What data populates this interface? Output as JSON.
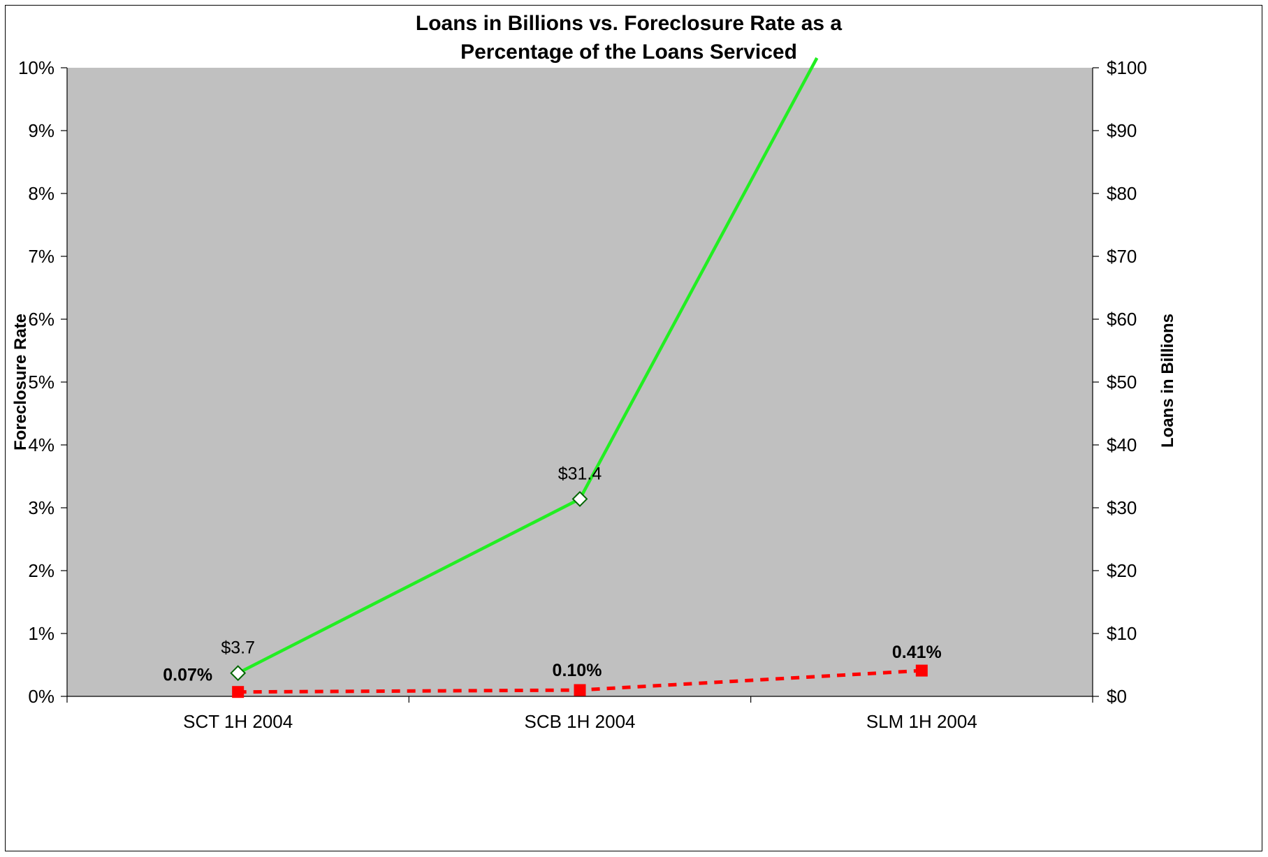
{
  "chart_data": {
    "type": "line",
    "title": [
      "Loans in Billions vs. Foreclosure Rate as a",
      "Percentage of the Loans  Serviced"
    ],
    "categories": [
      "SCT 1H 2004",
      "SCB 1H 2004",
      "SLM 1H 2004"
    ],
    "y_left": {
      "label": "Foreclosure Rate",
      "range": [
        0,
        10
      ],
      "ticks": [
        "0%",
        "1%",
        "2%",
        "3%",
        "4%",
        "5%",
        "6%",
        "7%",
        "8%",
        "9%",
        "10%"
      ]
    },
    "y_right": {
      "label": "Loans in Billions",
      "range": [
        0,
        100
      ],
      "ticks": [
        "$0",
        "$10",
        "$20",
        "$30",
        "$40",
        "$50",
        "$60",
        "$70",
        "$80",
        "$90",
        "$100"
      ]
    },
    "series": [
      {
        "axis": "right",
        "values": [
          3.7,
          31.4,
          null
        ],
        "labels": [
          "$3.7",
          "$31.4",
          ""
        ],
        "color": "#22ee22",
        "marker": "diamond",
        "line_style": "solid",
        "note": "third point exceeds the $100 axis maximum and is clipped at the top of the plot"
      },
      {
        "axis": "left",
        "values": [
          0.07,
          0.1,
          0.41
        ],
        "labels": [
          "0.07%",
          "0.10%",
          "0.41%"
        ],
        "color": "#ff0000",
        "marker": "square",
        "line_style": "dashed"
      }
    ],
    "plot_background": "#c0c0c0",
    "grid": false,
    "legend": "none"
  }
}
